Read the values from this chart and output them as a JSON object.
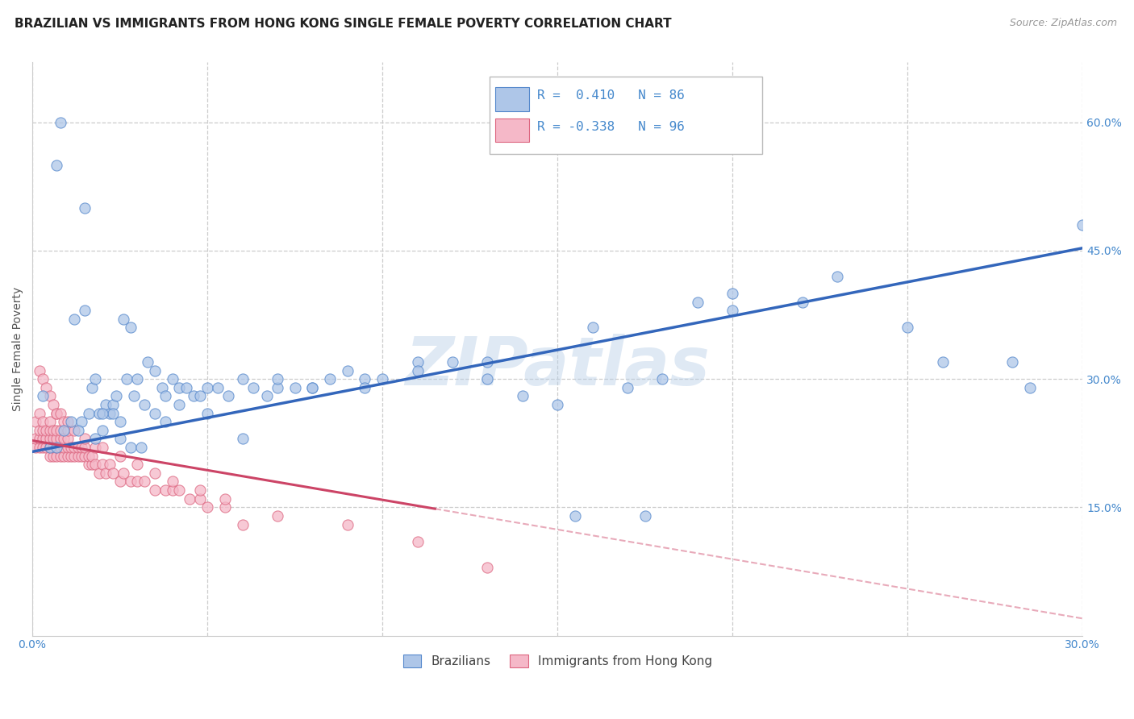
{
  "title": "BRAZILIAN VS IMMIGRANTS FROM HONG KONG SINGLE FEMALE POVERTY CORRELATION CHART",
  "source": "Source: ZipAtlas.com",
  "ylabel": "Single Female Poverty",
  "watermark": "ZIPatlas",
  "blue_R": 0.41,
  "blue_N": 86,
  "pink_R": -0.338,
  "pink_N": 96,
  "ytick_values": [
    0.15,
    0.3,
    0.45,
    0.6
  ],
  "blue_color": "#aec6e8",
  "pink_color": "#f5b8c8",
  "blue_edge_color": "#5588cc",
  "pink_edge_color": "#dd6680",
  "blue_line_color": "#3366bb",
  "pink_line_color": "#cc4466",
  "title_color": "#222222",
  "source_color": "#999999",
  "tick_color": "#4488cc",
  "background_color": "#ffffff",
  "grid_color": "#cccccc",
  "blue_scatter_x": [
    0.003,
    0.005,
    0.007,
    0.009,
    0.011,
    0.012,
    0.014,
    0.015,
    0.016,
    0.017,
    0.018,
    0.019,
    0.02,
    0.021,
    0.022,
    0.023,
    0.024,
    0.025,
    0.026,
    0.027,
    0.028,
    0.029,
    0.03,
    0.032,
    0.033,
    0.035,
    0.037,
    0.038,
    0.04,
    0.042,
    0.044,
    0.046,
    0.048,
    0.05,
    0.053,
    0.056,
    0.06,
    0.063,
    0.067,
    0.07,
    0.075,
    0.08,
    0.085,
    0.09,
    0.095,
    0.1,
    0.11,
    0.12,
    0.13,
    0.14,
    0.15,
    0.16,
    0.17,
    0.18,
    0.19,
    0.2,
    0.22,
    0.25,
    0.28,
    0.3,
    0.007,
    0.013,
    0.018,
    0.023,
    0.028,
    0.035,
    0.042,
    0.05,
    0.06,
    0.07,
    0.08,
    0.095,
    0.11,
    0.13,
    0.155,
    0.175,
    0.2,
    0.23,
    0.26,
    0.285,
    0.008,
    0.015,
    0.02,
    0.025,
    0.031,
    0.038
  ],
  "blue_scatter_y": [
    0.28,
    0.22,
    0.55,
    0.24,
    0.25,
    0.37,
    0.25,
    0.38,
    0.26,
    0.29,
    0.3,
    0.26,
    0.24,
    0.27,
    0.26,
    0.27,
    0.28,
    0.25,
    0.37,
    0.3,
    0.36,
    0.28,
    0.3,
    0.27,
    0.32,
    0.31,
    0.29,
    0.28,
    0.3,
    0.29,
    0.29,
    0.28,
    0.28,
    0.29,
    0.29,
    0.28,
    0.3,
    0.29,
    0.28,
    0.29,
    0.29,
    0.29,
    0.3,
    0.31,
    0.3,
    0.3,
    0.32,
    0.32,
    0.32,
    0.28,
    0.27,
    0.36,
    0.29,
    0.3,
    0.39,
    0.4,
    0.39,
    0.36,
    0.32,
    0.48,
    0.22,
    0.24,
    0.23,
    0.26,
    0.22,
    0.26,
    0.27,
    0.26,
    0.23,
    0.3,
    0.29,
    0.29,
    0.31,
    0.3,
    0.14,
    0.14,
    0.38,
    0.42,
    0.32,
    0.29,
    0.6,
    0.5,
    0.26,
    0.23,
    0.22,
    0.25
  ],
  "pink_scatter_x": [
    0.001,
    0.001,
    0.001,
    0.002,
    0.002,
    0.002,
    0.002,
    0.003,
    0.003,
    0.003,
    0.003,
    0.004,
    0.004,
    0.004,
    0.005,
    0.005,
    0.005,
    0.005,
    0.005,
    0.006,
    0.006,
    0.006,
    0.006,
    0.007,
    0.007,
    0.007,
    0.007,
    0.007,
    0.008,
    0.008,
    0.008,
    0.008,
    0.009,
    0.009,
    0.009,
    0.01,
    0.01,
    0.01,
    0.01,
    0.011,
    0.011,
    0.012,
    0.012,
    0.013,
    0.013,
    0.014,
    0.014,
    0.015,
    0.015,
    0.016,
    0.016,
    0.017,
    0.017,
    0.018,
    0.019,
    0.02,
    0.021,
    0.022,
    0.023,
    0.025,
    0.026,
    0.028,
    0.03,
    0.032,
    0.035,
    0.038,
    0.04,
    0.042,
    0.045,
    0.048,
    0.05,
    0.055,
    0.06,
    0.002,
    0.003,
    0.004,
    0.005,
    0.006,
    0.007,
    0.008,
    0.009,
    0.01,
    0.012,
    0.015,
    0.018,
    0.02,
    0.025,
    0.03,
    0.035,
    0.04,
    0.048,
    0.055,
    0.07,
    0.09,
    0.11,
    0.13
  ],
  "pink_scatter_y": [
    0.22,
    0.23,
    0.25,
    0.22,
    0.23,
    0.24,
    0.26,
    0.22,
    0.23,
    0.24,
    0.25,
    0.22,
    0.23,
    0.24,
    0.21,
    0.22,
    0.23,
    0.24,
    0.25,
    0.21,
    0.22,
    0.23,
    0.24,
    0.21,
    0.22,
    0.23,
    0.24,
    0.26,
    0.21,
    0.22,
    0.23,
    0.24,
    0.21,
    0.22,
    0.23,
    0.21,
    0.22,
    0.23,
    0.24,
    0.21,
    0.22,
    0.21,
    0.22,
    0.21,
    0.22,
    0.21,
    0.22,
    0.21,
    0.22,
    0.2,
    0.21,
    0.2,
    0.21,
    0.2,
    0.19,
    0.2,
    0.19,
    0.2,
    0.19,
    0.18,
    0.19,
    0.18,
    0.18,
    0.18,
    0.17,
    0.17,
    0.17,
    0.17,
    0.16,
    0.16,
    0.15,
    0.15,
    0.13,
    0.31,
    0.3,
    0.29,
    0.28,
    0.27,
    0.26,
    0.26,
    0.25,
    0.25,
    0.24,
    0.23,
    0.22,
    0.22,
    0.21,
    0.2,
    0.19,
    0.18,
    0.17,
    0.16,
    0.14,
    0.13,
    0.11,
    0.08
  ],
  "xlim": [
    0.0,
    0.3
  ],
  "ylim": [
    0.0,
    0.67
  ],
  "blue_line_x0": 0.0,
  "blue_line_y0": 0.215,
  "blue_line_x1": 0.3,
  "blue_line_y1": 0.453,
  "pink_line_x0": 0.0,
  "pink_line_y0": 0.228,
  "pink_line_x1": 0.3,
  "pink_line_y1": 0.02
}
